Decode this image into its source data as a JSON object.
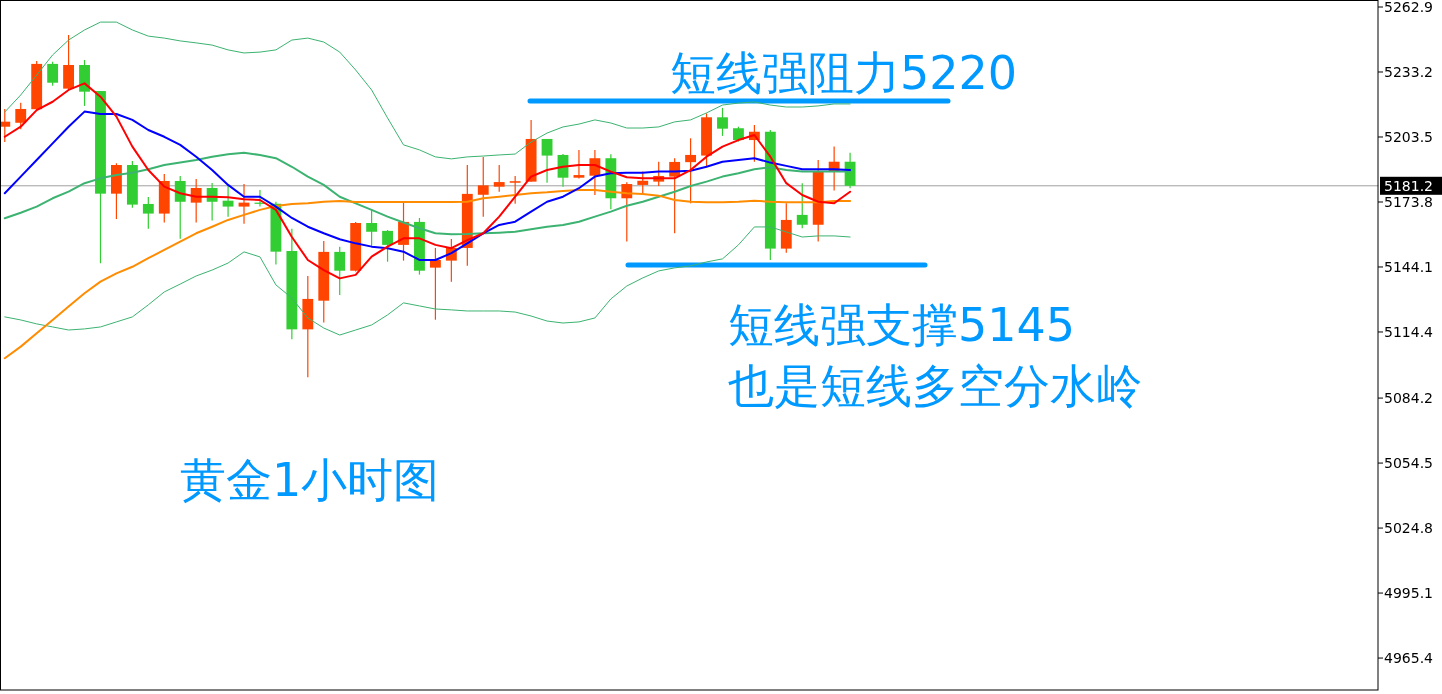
{
  "chart_data": {
    "type": "candlestick",
    "categories": [
      null,
      null,
      null,
      null,
      null,
      null,
      null,
      null,
      null,
      null,
      null,
      null,
      null,
      null,
      null,
      null,
      null,
      null,
      null,
      null,
      null,
      null,
      null,
      null,
      null,
      null,
      null,
      null,
      null,
      null,
      null,
      null,
      null,
      null,
      null,
      null,
      null,
      null,
      null,
      null,
      null,
      null,
      null,
      null,
      null,
      null,
      null,
      null,
      null,
      null,
      null,
      null,
      null,
      null
    ],
    "ohlc": [
      [
        5208.2,
        5216.3,
        5201.2,
        5210.5
      ],
      [
        5210.0,
        5219.2,
        5207.0,
        5216.3
      ],
      [
        5216.2,
        5238.2,
        5215.8,
        5236.9
      ],
      [
        5236.9,
        5237.9,
        5226.9,
        5228.3
      ],
      [
        5225.6,
        5250.1,
        5225.3,
        5236.4
      ],
      [
        5236.4,
        5238.7,
        5217.7,
        5224.2
      ],
      [
        5224.5,
        5224.5,
        5145.8,
        5177.6
      ],
      [
        5177.6,
        5191.5,
        5166.0,
        5190.7
      ],
      [
        5190.7,
        5192.5,
        5171.2,
        5172.6
      ],
      [
        5172.9,
        5176.1,
        5161.6,
        5168.5
      ],
      [
        5168.5,
        5186.6,
        5164.4,
        5183.4
      ],
      [
        5183.4,
        5185.7,
        5157.0,
        5173.9
      ],
      [
        5173.5,
        5184.3,
        5164.4,
        5180.2
      ],
      [
        5180.2,
        5182.5,
        5165.3,
        5173.9
      ],
      [
        5174.4,
        5181.1,
        5167.1,
        5171.7
      ],
      [
        5171.7,
        5182.0,
        5163.9,
        5173.5
      ],
      [
        5173.5,
        5179.3,
        5171.7,
        5173.0
      ],
      [
        5173.0,
        5173.9,
        5145.2,
        5151.1
      ],
      [
        5151.4,
        5161.6,
        5111.1,
        5115.6
      ],
      [
        5115.6,
        5140.0,
        5093.7,
        5129.5
      ],
      [
        5128.7,
        5156.0,
        5118.7,
        5151.0
      ],
      [
        5151.0,
        5153.3,
        5131.3,
        5142.4
      ],
      [
        5142.4,
        5164.7,
        5142.0,
        5164.2
      ],
      [
        5164.2,
        5170.2,
        5153.4,
        5160.2
      ],
      [
        5160.6,
        5161.0,
        5146.5,
        5154.2
      ],
      [
        5154.2,
        5173.4,
        5147.0,
        5164.7
      ],
      [
        5164.7,
        5166.5,
        5140.6,
        5142.4
      ],
      [
        5143.8,
        5152.8,
        5120.0,
        5147.3
      ],
      [
        5147.0,
        5156.9,
        5137.4,
        5152.8
      ],
      [
        5152.8,
        5190.7,
        5144.7,
        5177.5
      ],
      [
        5177.1,
        5194.4,
        5167.1,
        5181.4
      ],
      [
        5180.8,
        5190.7,
        5178.5,
        5182.9
      ],
      [
        5182.6,
        5185.7,
        5173.0,
        5183.3
      ],
      [
        5183.1,
        5211.3,
        5183.1,
        5202.6
      ],
      [
        5202.6,
        5202.6,
        5182.6,
        5195.0
      ],
      [
        5195.3,
        5195.7,
        5180.8,
        5184.9
      ],
      [
        5184.9,
        5197.6,
        5184.5,
        5186.1
      ],
      [
        5185.8,
        5197.6,
        5177.0,
        5193.8
      ],
      [
        5193.8,
        5195.6,
        5170.5,
        5175.5
      ],
      [
        5175.5,
        5182.8,
        5155.7,
        5182.0
      ],
      [
        5181.6,
        5187.7,
        5177.8,
        5183.5
      ],
      [
        5183.1,
        5192.2,
        5181.1,
        5185.7
      ],
      [
        5185.4,
        5193.8,
        5159.5,
        5192.1
      ],
      [
        5192.0,
        5202.9,
        5173.2,
        5195.3
      ],
      [
        5195.0,
        5214.3,
        5189.7,
        5212.5
      ],
      [
        5212.5,
        5216.8,
        5204.0,
        5207.3
      ],
      [
        5207.5,
        5208.2,
        5201.4,
        5202.1
      ],
      [
        5202.1,
        5209.0,
        5192.2,
        5205.9
      ],
      [
        5205.9,
        5206.7,
        5147.3,
        5152.5
      ],
      [
        5152.5,
        5173.2,
        5150.6,
        5165.6
      ],
      [
        5167.9,
        5182.4,
        5161.8,
        5163.4
      ],
      [
        5163.4,
        5193.0,
        5155.7,
        5187.7
      ],
      [
        5187.7,
        5199.1,
        5179.0,
        5192.2
      ],
      [
        5192.2,
        5196.3,
        5180.1,
        5181.2
      ]
    ],
    "colors": [
      "#ff4500",
      "#ff4500",
      "#ff4500",
      "#32cd32",
      "#ff4500",
      "#32cd32",
      "#32cd32",
      "#ff4500",
      "#32cd32",
      "#32cd32",
      "#ff4500",
      "#32cd32",
      "#ff4500",
      "#32cd32",
      "#32cd32",
      "#ff4500",
      "#32cd32",
      "#32cd32",
      "#32cd32",
      "#ff4500",
      "#ff4500",
      "#32cd32",
      "#ff4500",
      "#32cd32",
      "#32cd32",
      "#ff4500",
      "#32cd32",
      "#ff4500",
      "#ff4500",
      "#ff4500",
      "#ff4500",
      "#ff4500",
      "#ff4500",
      "#ff4500",
      "#32cd32",
      "#32cd32",
      "#ff4500",
      "#ff4500",
      "#32cd32",
      "#ff4500",
      "#ff4500",
      "#ff4500",
      "#ff4500",
      "#ff4500",
      "#ff4500",
      "#32cd32",
      "#32cd32",
      "#ff4500",
      "#32cd32",
      "#ff4500",
      "#32cd32",
      "#ff4500",
      "#ff4500",
      "#32cd32"
    ],
    "series": [
      {
        "type": "line",
        "color": "#3cb371",
        "values": [
          5214.9,
          5222.7,
          5231.8,
          5241.0,
          5247.8,
          5252.4,
          5256.0,
          5256.0,
          5252.4,
          5249.6,
          5248.7,
          5247.4,
          5246.5,
          5245.5,
          5243.3,
          5241.9,
          5242.3,
          5243.3,
          5247.8,
          5248.7,
          5246.9,
          5242.3,
          5234.1,
          5225.0,
          5212.2,
          5199.9,
          5197.6,
          5194.4,
          5193.5,
          5194.4,
          5194.8,
          5195.3,
          5195.7,
          5201.2,
          5205.3,
          5208.1,
          5209.4,
          5211.3,
          5209.9,
          5207.6,
          5207.6,
          5208.1,
          5210.4,
          5211.3,
          5214.5,
          5218.1,
          5219.0,
          5219.5,
          5218.1,
          5217.2,
          5217.2,
          5217.7,
          5218.6,
          5218.6
        ]
      },
      {
        "type": "line",
        "color": "#3cb371",
        "values": [
          5121.3,
          5119.9,
          5118.1,
          5116.7,
          5115.3,
          5115.8,
          5116.7,
          5119.0,
          5121.3,
          5126.8,
          5132.7,
          5136.3,
          5140.0,
          5142.7,
          5145.9,
          5151.0,
          5148.7,
          5135.9,
          5129.9,
          5120.8,
          5116.2,
          5113.0,
          5115.3,
          5117.6,
          5122.2,
          5127.7,
          5126.3,
          5124.9,
          5124.5,
          5124.0,
          5124.0,
          5124.0,
          5123.5,
          5121.7,
          5119.4,
          5118.5,
          5119.0,
          5120.8,
          5129.5,
          5135.4,
          5139.1,
          5142.3,
          5143.7,
          5144.6,
          5146.4,
          5147.8,
          5154.2,
          5162.4,
          5162.4,
          5160.1,
          5157.8,
          5158.3,
          5158.3,
          5157.8
        ]
      },
      {
        "type": "line",
        "color": "#3cb371",
        "values": [
          5166.4,
          5168.9,
          5171.7,
          5175.5,
          5178.5,
          5182.4,
          5184.6,
          5186.1,
          5187.2,
          5188.8,
          5190.7,
          5191.8,
          5193.0,
          5194.5,
          5195.6,
          5196.3,
          5195.3,
          5193.8,
          5189.9,
          5185.4,
          5181.6,
          5176.2,
          5173.2,
          5170.2,
          5167.1,
          5164.4,
          5161.8,
          5159.5,
          5159.1,
          5159.2,
          5159.5,
          5159.8,
          5160.2,
          5161.3,
          5162.5,
          5163.3,
          5164.8,
          5167.1,
          5169.4,
          5172.1,
          5173.9,
          5176.2,
          5178.5,
          5181.1,
          5183.1,
          5185.4,
          5186.9,
          5188.8,
          5189.7,
          5188.4,
          5187.7,
          5187.7,
          5187.7,
          5187.7
        ]
      },
      {
        "type": "line",
        "color": "#ff8c00",
        "values": [
          5102.4,
          5107.7,
          5113.8,
          5119.9,
          5126.0,
          5132.1,
          5137.4,
          5141.2,
          5144.2,
          5148.1,
          5151.9,
          5155.7,
          5159.5,
          5162.5,
          5165.6,
          5167.9,
          5170.2,
          5172.0,
          5172.9,
          5173.2,
          5173.9,
          5174.3,
          5173.8,
          5173.8,
          5173.8,
          5173.8,
          5173.8,
          5173.8,
          5173.8,
          5173.9,
          5175.5,
          5176.2,
          5177.0,
          5177.8,
          5178.2,
          5178.8,
          5179.3,
          5179.3,
          5178.5,
          5177.8,
          5177.5,
          5176.7,
          5174.7,
          5173.9,
          5173.7,
          5173.7,
          5173.9,
          5174.4,
          5173.9,
          5173.7,
          5173.7,
          5173.7,
          5174.3,
          5174.3
        ]
      },
      {
        "type": "line",
        "color": "#0000ff",
        "values": [
          5177.8,
          5185.4,
          5193.0,
          5200.6,
          5208.2,
          5215.1,
          5214.0,
          5214.0,
          5211.3,
          5206.7,
          5203.6,
          5199.9,
          5194.5,
          5188.4,
          5181.6,
          5176.2,
          5176.2,
          5171.7,
          5166.5,
          5162.5,
          5159.5,
          5156.8,
          5154.9,
          5153.4,
          5152.7,
          5151.1,
          5147.3,
          5147.3,
          5150.4,
          5154.9,
          5159.5,
          5163.3,
          5164.8,
          5169.4,
          5173.9,
          5176.2,
          5180.1,
          5185.4,
          5186.9,
          5187.2,
          5187.2,
          5187.7,
          5187.7,
          5188.1,
          5189.9,
          5192.2,
          5193.0,
          5193.8,
          5191.8,
          5190.3,
          5188.8,
          5188.8,
          5188.8,
          5188.4
        ]
      },
      {
        "type": "line",
        "color": "#ff0000",
        "values": [
          5203.6,
          5208.2,
          5215.8,
          5219.6,
          5225.0,
          5228.0,
          5221.9,
          5212.8,
          5199.1,
          5188.4,
          5180.8,
          5177.8,
          5176.2,
          5176.2,
          5176.0,
          5175.0,
          5174.7,
          5170.2,
          5157.8,
          5147.3,
          5142.7,
          5138.9,
          5140.5,
          5148.8,
          5153.4,
          5157.2,
          5157.2,
          5154.2,
          5152.7,
          5156.4,
          5159.5,
          5167.1,
          5176.2,
          5185.4,
          5188.4,
          5189.9,
          5190.7,
          5190.7,
          5187.7,
          5185.1,
          5184.6,
          5184.6,
          5184.6,
          5188.4,
          5194.5,
          5199.1,
          5202.1,
          5204.4,
          5194.5,
          5182.4,
          5177.0,
          5173.9,
          5173.2,
          5178.5
        ]
      }
    ],
    "ylim": [
      4950.8,
      5266.1
    ],
    "yticks": [
      5262.9,
      5233.2,
      5203.5,
      5173.8,
      5144.1,
      5114.4,
      5084.2,
      5054.5,
      5024.8,
      4995.1,
      4965.4
    ],
    "tick_labels": "y",
    "ref_lines": [
      {
        "axis": "y",
        "value": 5181.2,
        "label": "5181.2",
        "color": "#a0a0a0"
      },
      {
        "axis": "y",
        "value": 5220,
        "label": "短线强阻力5220",
        "color": "#0099ff"
      },
      {
        "axis": "y",
        "value": 5145,
        "label": "短线强支撑5145",
        "color": "#0099ff"
      }
    ],
    "annotations": [
      "也是短线多空分水岭",
      "黄金1小时图"
    ]
  }
}
